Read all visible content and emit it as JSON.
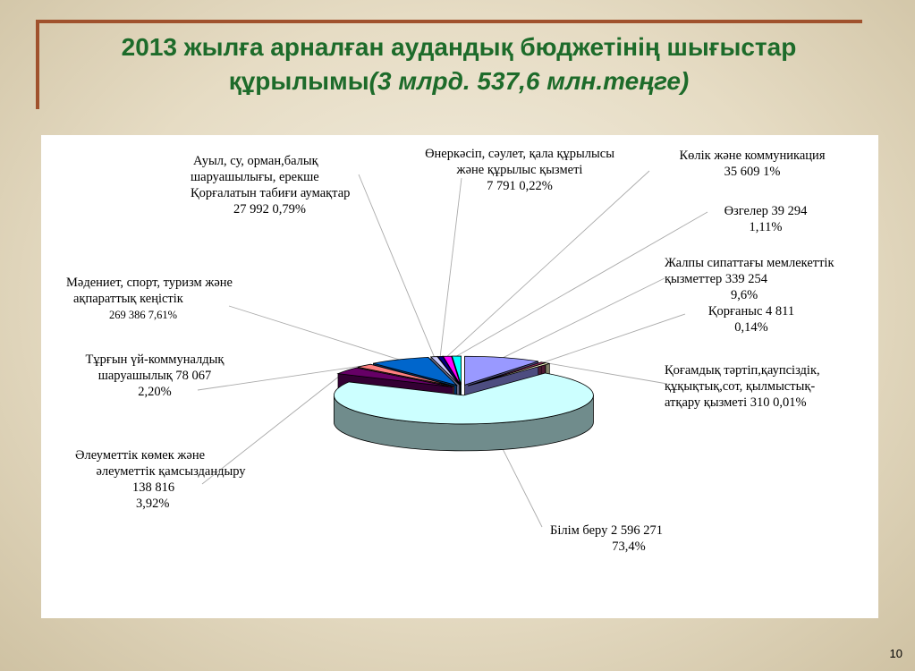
{
  "title": {
    "line1": "2013 жылға арналған аудандық бюджетінің шығыстар",
    "line2_main": "құрылымы",
    "line2_italic": "(3 млрд. 537,6 млн.теңге)"
  },
  "page_number": "10",
  "chart_data": {
    "type": "pie",
    "variant": "3d-exploded",
    "title": "2013 жылға арналған аудандық бюджетінің шығыстар құрылымы(3 млрд. 537,6 млн.теңге)",
    "slices": [
      {
        "name": "Жалпы сипаттағы мемлекеттік қызметтер",
        "value": 339254,
        "percent": 9.6,
        "color": "#9999ff"
      },
      {
        "name": "Қорғаныс",
        "value": 4811,
        "percent": 0.14,
        "color": "#993366"
      },
      {
        "name": "Қоғамдық тәртіп,қаупсіздік, құқықтық,сот, қылмыстық-атқару қызметі",
        "value": 310,
        "percent": 0.01,
        "color": "#ffffcc"
      },
      {
        "name": "Білім беру",
        "value": 2596271,
        "percent": 73.4,
        "color": "#ccffff"
      },
      {
        "name": "Әлеуметтік көмек және әлеуметтік қамсыздандыру",
        "value": 138816,
        "percent": 3.92,
        "color": "#660066"
      },
      {
        "name": "Тұрғын үй-коммуналдық шаруашылық",
        "value": 78067,
        "percent": 2.2,
        "color": "#ff8080"
      },
      {
        "name": "Мәдениет, спорт, туризм және ақпараттық кеңістік",
        "value": 269386,
        "percent": 7.61,
        "color": "#0066cc"
      },
      {
        "name": "Ауыл, су, орман,балық шаруашылығы, ерекше Қорғалатын табиғи аумақтар",
        "value": 27992,
        "percent": 0.79,
        "color": "#ccccff"
      },
      {
        "name": "Өнеркәсіп, сәулет, қала құрылысы және құрылыс қызметі",
        "value": 7791,
        "percent": 0.22,
        "color": "#000080"
      },
      {
        "name": "Көлік және коммуникация",
        "value": 35609,
        "percent": 1.0,
        "color": "#ff00ff"
      },
      {
        "name": "Өзгелер",
        "value": 39294,
        "percent": 1.11,
        "color": "#00ffff"
      }
    ]
  },
  "labels": {
    "auyl": {
      "l1": "Ауыл, су, орман,балық",
      "l2": "шаруашылығы, ерекше",
      "l3": "Қорғалатын  табиғи аумақтар",
      "l4a": "27 992",
      "l4b": "0,79%"
    },
    "onerkasip": {
      "l1": "Өнеркәсіп, сәулет, қала құрылысы",
      "l2": "және құрылыс қызметі",
      "l3": "7 791    0,22%"
    },
    "kolik": {
      "l1": "Көлік және коммуникация",
      "l2": "35 609      1%"
    },
    "ozgeler": {
      "l1": "Өзгелер    39 294",
      "l2": "1,11%"
    },
    "zhalpy": {
      "l1": "Жалпы сипаттағы мемлекеттік",
      "l2": "қызметтер    339 254",
      "l3": "9,6%"
    },
    "korganys": {
      "l1": "Қорғаныс  4 811",
      "l2": "0,14%"
    },
    "kogamdyk": {
      "l1": "Қоғамдық тәртіп,қаупсіздік,",
      "l2": "құқықтық,сот, қылмыстық-",
      "l3": "атқару қызметі    310    0,01%"
    },
    "bilim": {
      "l1": "Білім беру  2 596 271",
      "l2": "73,4%"
    },
    "aleumettik": {
      "l1": "Әлеуметтік көмек және",
      "l2": "әлеуметтік қамсыздандыру",
      "l3": "138 816",
      "l4": "3,92%"
    },
    "turgyn": {
      "l1": "Тұрғын үй-коммуналдық",
      "l2": "шаруашылық  78 067",
      "l3": "2,20%"
    },
    "madeniet": {
      "l1": "Мәдениет, спорт, туризм және",
      "l2": "ақпараттық кеңістік",
      "l3": "269 386   7,61%"
    }
  }
}
